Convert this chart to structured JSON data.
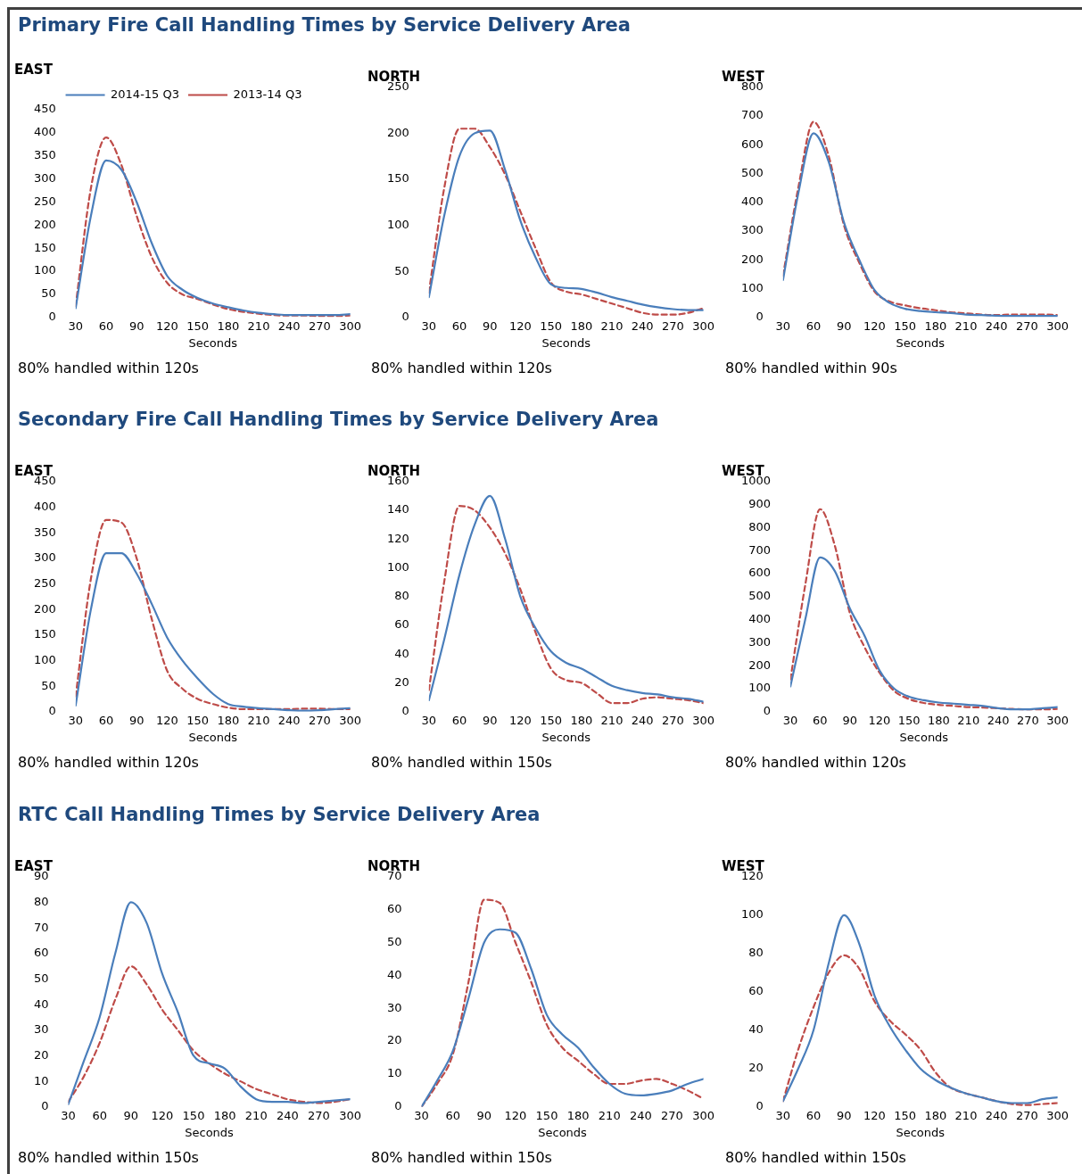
{
  "chart_data": [
    {
      "type": "line",
      "title": "Primary Fire Call Handling Times by Service Delivery Area",
      "subtitle": "EAST",
      "xlabel": "Seconds",
      "x": [
        30,
        45,
        60,
        75,
        90,
        105,
        120,
        135,
        150,
        165,
        180,
        195,
        210,
        225,
        240,
        255,
        270,
        285,
        300
      ],
      "xlim": [
        30,
        300
      ],
      "xticks": [
        30,
        60,
        90,
        120,
        150,
        180,
        210,
        240,
        270,
        300
      ],
      "ylim": [
        0,
        450
      ],
      "yticks": [
        0,
        50,
        100,
        150,
        200,
        250,
        300,
        350,
        400,
        450
      ],
      "grid": false,
      "legend": "top",
      "annotations": [
        "80% handled within 120s"
      ],
      "series": [
        {
          "name": "2014-15 Q3",
          "color": "#4a7ebb",
          "line_style": "solid",
          "values": [
            20,
            220,
            340,
            320,
            250,
            160,
            90,
            60,
            42,
            30,
            22,
            15,
            10,
            7,
            5,
            5,
            5,
            5,
            7
          ]
        },
        {
          "name": "2013-14 Q3",
          "color": "#be4b48",
          "line_style": "dashed",
          "values": [
            25,
            280,
            390,
            330,
            220,
            130,
            75,
            50,
            40,
            28,
            18,
            12,
            8,
            5,
            4,
            4,
            3,
            3,
            4
          ]
        }
      ]
    },
    {
      "type": "line",
      "subtitle": "NORTH",
      "xlabel": "Seconds",
      "x": [
        30,
        45,
        60,
        75,
        90,
        105,
        120,
        135,
        150,
        165,
        180,
        195,
        210,
        225,
        240,
        255,
        270,
        285,
        300
      ],
      "xlim": [
        30,
        300
      ],
      "xticks": [
        30,
        60,
        90,
        120,
        150,
        180,
        210,
        240,
        270,
        300
      ],
      "ylim": [
        0,
        250
      ],
      "yticks": [
        0,
        50,
        100,
        150,
        200,
        250
      ],
      "grid": false,
      "annotations": [
        "80% handled within 120s"
      ],
      "series": [
        {
          "color": "#4a7ebb",
          "line_style": "solid",
          "values": [
            22,
            110,
            175,
            200,
            203,
            160,
            105,
            65,
            36,
            32,
            31,
            27,
            22,
            18,
            14,
            11,
            9,
            8,
            8
          ]
        },
        {
          "color": "#be4b48",
          "line_style": "dashed",
          "values": [
            27,
            140,
            205,
            205,
            185,
            155,
            115,
            75,
            38,
            28,
            25,
            20,
            15,
            10,
            5,
            3,
            3,
            5,
            10
          ]
        }
      ]
    },
    {
      "type": "line",
      "subtitle": "WEST",
      "xlabel": "Seconds",
      "x": [
        30,
        45,
        60,
        75,
        90,
        105,
        120,
        135,
        150,
        165,
        180,
        195,
        210,
        225,
        240,
        255,
        270,
        285,
        300
      ],
      "xlim": [
        30,
        300
      ],
      "xticks": [
        30,
        60,
        90,
        120,
        150,
        180,
        210,
        240,
        270,
        300
      ],
      "ylim": [
        0,
        800
      ],
      "yticks": [
        0,
        100,
        200,
        300,
        400,
        500,
        600,
        700,
        800
      ],
      "grid": false,
      "annotations": [
        "80% handled within 90s"
      ],
      "series": [
        {
          "color": "#4a7ebb",
          "line_style": "solid",
          "values": [
            130,
            430,
            640,
            540,
            330,
            200,
            95,
            50,
            30,
            22,
            18,
            15,
            10,
            8,
            6,
            5,
            5,
            5,
            5
          ]
        },
        {
          "color": "#be4b48",
          "line_style": "dashed",
          "values": [
            145,
            450,
            680,
            560,
            320,
            190,
            90,
            55,
            42,
            32,
            25,
            18,
            14,
            10,
            8,
            10,
            10,
            10,
            8
          ]
        }
      ]
    },
    {
      "type": "line",
      "title": "Secondary Fire Call Handling Times by Service Delivery Area",
      "subtitle": "EAST",
      "xlabel": "Seconds",
      "x": [
        30,
        45,
        60,
        75,
        90,
        105,
        120,
        135,
        150,
        165,
        180,
        195,
        210,
        225,
        240,
        255,
        270,
        285,
        300
      ],
      "xlim": [
        30,
        300
      ],
      "xticks": [
        30,
        60,
        90,
        120,
        150,
        180,
        210,
        240,
        270,
        300
      ],
      "ylim": [
        0,
        450
      ],
      "yticks": [
        0,
        50,
        100,
        150,
        200,
        250,
        300,
        350,
        400,
        450
      ],
      "grid": false,
      "annotations": [
        "80% handled within 120s"
      ],
      "series": [
        {
          "color": "#4a7ebb",
          "line_style": "solid",
          "values": [
            12,
            200,
            310,
            310,
            270,
            210,
            145,
            100,
            65,
            35,
            15,
            10,
            7,
            5,
            3,
            2,
            3,
            5,
            7
          ]
        },
        {
          "color": "#be4b48",
          "line_style": "dashed",
          "values": [
            30,
            260,
            375,
            370,
            300,
            180,
            80,
            45,
            25,
            15,
            8,
            5,
            5,
            5,
            5,
            6,
            6,
            5,
            5
          ]
        }
      ]
    },
    {
      "type": "line",
      "subtitle": "NORTH",
      "xlabel": "Seconds",
      "x": [
        30,
        45,
        60,
        75,
        90,
        105,
        120,
        135,
        150,
        165,
        180,
        195,
        210,
        225,
        240,
        255,
        270,
        285,
        300
      ],
      "xlim": [
        30,
        300
      ],
      "xticks": [
        30,
        60,
        90,
        120,
        150,
        180,
        210,
        240,
        270,
        300
      ],
      "ylim": [
        0,
        160
      ],
      "yticks": [
        0,
        20,
        40,
        60,
        80,
        100,
        120,
        140,
        160
      ],
      "grid": false,
      "annotations": [
        "80% handled within 150s"
      ],
      "series": [
        {
          "color": "#4a7ebb",
          "line_style": "solid",
          "values": [
            8,
            50,
            95,
            130,
            150,
            120,
            80,
            58,
            42,
            34,
            30,
            24,
            18,
            15,
            13,
            12,
            10,
            9,
            7
          ]
        },
        {
          "color": "#be4b48",
          "line_style": "dashed",
          "values": [
            15,
            90,
            143,
            140,
            128,
            110,
            85,
            55,
            30,
            22,
            20,
            13,
            6,
            6,
            9,
            10,
            9,
            8,
            6
          ]
        }
      ]
    },
    {
      "type": "line",
      "subtitle": "WEST",
      "xlabel": "Seconds",
      "x": [
        30,
        45,
        60,
        75,
        90,
        105,
        120,
        135,
        150,
        165,
        180,
        195,
        210,
        225,
        240,
        255,
        270,
        285,
        300
      ],
      "xlim": [
        30,
        300
      ],
      "xticks": [
        30,
        60,
        90,
        120,
        150,
        180,
        210,
        240,
        270,
        300
      ],
      "ylim": [
        0,
        1000
      ],
      "yticks": [
        0,
        100,
        200,
        300,
        400,
        500,
        600,
        700,
        800,
        900,
        1000
      ],
      "grid": false,
      "annotations": [
        "80% handled within 120s"
      ],
      "series": [
        {
          "color": "#4a7ebb",
          "line_style": "solid",
          "values": [
            110,
            400,
            670,
            610,
            450,
            330,
            180,
            100,
            65,
            50,
            40,
            35,
            30,
            25,
            15,
            10,
            10,
            15,
            20
          ]
        },
        {
          "color": "#be4b48",
          "line_style": "dashed",
          "values": [
            140,
            550,
            880,
            720,
            430,
            280,
            170,
            90,
            55,
            38,
            30,
            25,
            20,
            18,
            15,
            12,
            10,
            10,
            12
          ]
        }
      ]
    },
    {
      "type": "line",
      "title": "RTC Call Handling Times by Service Delivery Area",
      "subtitle": "EAST",
      "xlabel": "Seconds",
      "x": [
        30,
        45,
        60,
        75,
        90,
        105,
        120,
        135,
        150,
        165,
        180,
        195,
        210,
        225,
        240,
        255,
        270,
        285,
        300
      ],
      "xlim": [
        30,
        300
      ],
      "xticks": [
        30,
        60,
        90,
        120,
        150,
        180,
        210,
        240,
        270,
        300
      ],
      "ylim": [
        0,
        90
      ],
      "yticks": [
        0,
        10,
        20,
        30,
        40,
        50,
        60,
        70,
        80,
        90
      ],
      "grid": false,
      "annotations": [
        "80% handled within 150s"
      ],
      "series": [
        {
          "color": "#4a7ebb",
          "line_style": "solid",
          "values": [
            1,
            18,
            35,
            60,
            80,
            72,
            52,
            37,
            20,
            17,
            15,
            8,
            3,
            2,
            2,
            1.5,
            2,
            2.5,
            3
          ]
        },
        {
          "color": "#be4b48",
          "line_style": "dashed",
          "values": [
            2,
            12,
            25,
            42,
            55,
            48,
            38,
            30,
            22,
            17,
            13,
            10,
            7,
            5,
            3,
            2,
            1.5,
            2,
            3
          ]
        }
      ]
    },
    {
      "type": "line",
      "subtitle": "NORTH",
      "xlabel": "Seconds",
      "x": [
        30,
        45,
        60,
        75,
        90,
        105,
        120,
        135,
        150,
        165,
        180,
        195,
        210,
        225,
        240,
        255,
        270,
        285,
        300
      ],
      "xlim": [
        30,
        300
      ],
      "xticks": [
        30,
        60,
        90,
        120,
        150,
        180,
        210,
        240,
        270,
        300
      ],
      "ylim": [
        0,
        70
      ],
      "yticks": [
        0,
        10,
        20,
        30,
        40,
        50,
        60,
        70
      ],
      "grid": false,
      "annotations": [
        "80% handled within 150s"
      ],
      "series": [
        {
          "color": "#4a7ebb",
          "line_style": "solid",
          "values": [
            0,
            8,
            17,
            33,
            50,
            54,
            53,
            42,
            28,
            22,
            18,
            12,
            7,
            4,
            3.5,
            4,
            5,
            7,
            8.5
          ]
        },
        {
          "color": "#be4b48",
          "line_style": "dashed",
          "values": [
            0,
            7,
            16,
            38,
            63,
            62,
            50,
            38,
            25,
            18,
            14,
            10,
            7,
            7,
            8,
            8.5,
            7,
            5,
            2.5
          ]
        }
      ]
    },
    {
      "type": "line",
      "subtitle": "WEST",
      "xlabel": "Seconds",
      "x": [
        30,
        45,
        60,
        75,
        90,
        105,
        120,
        135,
        150,
        165,
        180,
        195,
        210,
        225,
        240,
        255,
        270,
        285,
        300
      ],
      "xlim": [
        30,
        300
      ],
      "xticks": [
        30,
        60,
        90,
        120,
        150,
        180,
        210,
        240,
        270,
        300
      ],
      "ylim": [
        0,
        120
      ],
      "yticks": [
        0,
        20,
        40,
        60,
        80,
        100,
        120
      ],
      "grid": false,
      "annotations": [
        "80% handled within 150s"
      ],
      "series": [
        {
          "color": "#4a7ebb",
          "line_style": "solid",
          "values": [
            3,
            20,
            40,
            75,
            100,
            85,
            58,
            42,
            30,
            20,
            14,
            10,
            7,
            5,
            3,
            2,
            2,
            4,
            5
          ]
        },
        {
          "color": "#be4b48",
          "line_style": "dashed",
          "values": [
            3,
            30,
            52,
            70,
            79,
            72,
            55,
            45,
            38,
            30,
            18,
            10,
            7,
            5,
            3,
            1.5,
            1,
            1.5,
            2
          ]
        }
      ]
    }
  ]
}
